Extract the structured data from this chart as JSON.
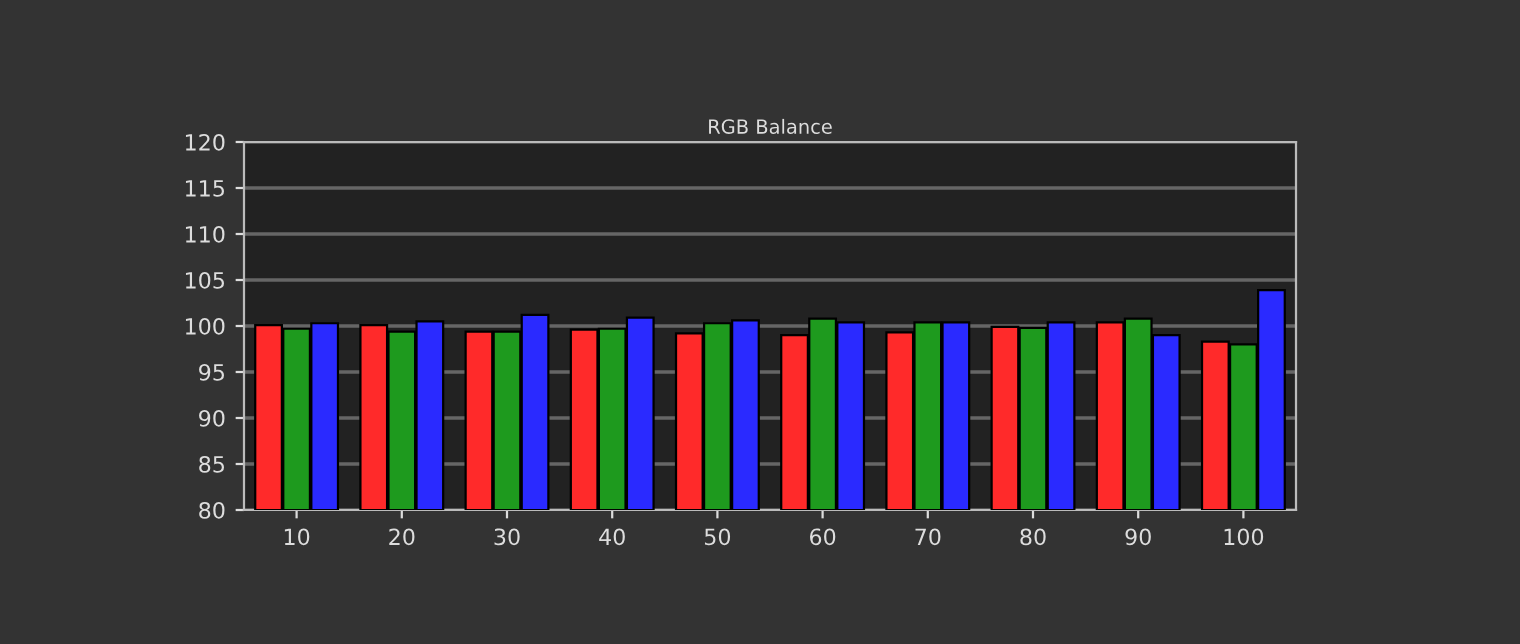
{
  "chart_data": {
    "type": "bar",
    "title": "RGB Balance",
    "categories": [
      "10",
      "20",
      "30",
      "40",
      "50",
      "60",
      "70",
      "80",
      "90",
      "100"
    ],
    "series": [
      {
        "color": "#ff2a2a",
        "values": [
          100.1,
          100.1,
          99.4,
          99.6,
          99.2,
          99.0,
          99.3,
          99.9,
          100.4,
          98.3
        ]
      },
      {
        "color": "#1e9a1e",
        "values": [
          99.7,
          99.4,
          99.4,
          99.7,
          100.3,
          100.8,
          100.4,
          99.8,
          100.8,
          98.0
        ]
      },
      {
        "color": "#2a2aff",
        "values": [
          100.3,
          100.5,
          101.2,
          100.9,
          100.6,
          100.4,
          100.4,
          100.4,
          99.0,
          103.9
        ]
      }
    ],
    "ylim": [
      80,
      120
    ],
    "yticks": [
      80,
      85,
      90,
      95,
      100,
      105,
      110,
      115,
      120
    ],
    "grid": "y",
    "legend": false
  }
}
